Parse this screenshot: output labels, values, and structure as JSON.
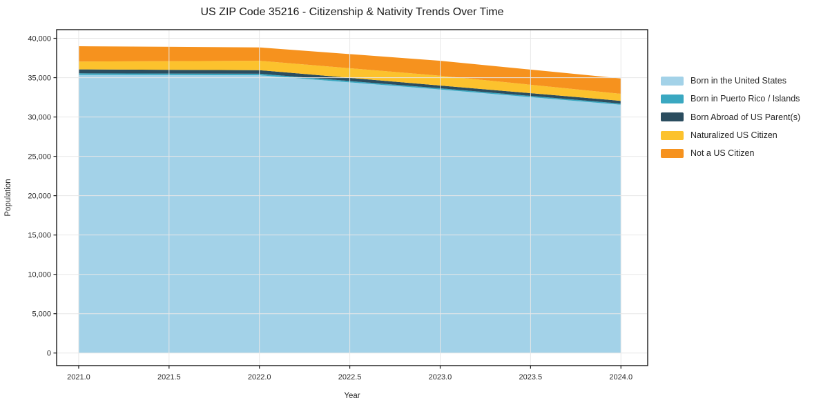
{
  "chart_data": {
    "type": "area",
    "stacked": true,
    "title": "US ZIP Code 35216 - Citizenship & Nativity Trends Over Time",
    "xlabel": "Year",
    "ylabel": "Population",
    "x": [
      2021,
      2022,
      2023,
      2024
    ],
    "series": [
      {
        "name": "Born in the United States",
        "color": "#a3d2e8",
        "values": [
          35350,
          35300,
          33500,
          31550
        ]
      },
      {
        "name": "Born in Puerto Rico / Islands",
        "color": "#3aa8c1",
        "values": [
          200,
          200,
          150,
          150
        ]
      },
      {
        "name": "Born Abroad of US Parent(s)",
        "color": "#2b4d5f",
        "values": [
          500,
          450,
          350,
          350
        ]
      },
      {
        "name": "Naturalized US Citizen",
        "color": "#fcc22d",
        "values": [
          1000,
          1200,
          1250,
          900
        ]
      },
      {
        "name": "Not a US Citizen",
        "color": "#f6921e",
        "values": [
          1950,
          1700,
          1900,
          1950
        ]
      }
    ],
    "stack_totals": [
      39000,
      38850,
      37150,
      34900
    ],
    "xlim": [
      2020.878,
      2024.148
    ],
    "ylim": [
      -1600,
      41100
    ],
    "x_ticks": {
      "values": [
        2021.0,
        2021.5,
        2022.0,
        2022.5,
        2023.0,
        2023.5,
        2024.0
      ],
      "labels": [
        "2021.0",
        "2021.5",
        "2022.0",
        "2022.5",
        "2023.0",
        "2023.5",
        "2024.0"
      ]
    },
    "y_ticks": {
      "values": [
        0,
        5000,
        10000,
        15000,
        20000,
        25000,
        30000,
        35000,
        40000
      ],
      "labels": [
        "0",
        "5,000",
        "10,000",
        "15,000",
        "20,000",
        "25,000",
        "30,000",
        "35,000",
        "40,000"
      ]
    },
    "grid": true,
    "legend_position": "right",
    "colors": {
      "grid": "#e7e7e7",
      "spine": "#1a1a1a",
      "text": "#262626",
      "background": "#ffffff"
    }
  }
}
